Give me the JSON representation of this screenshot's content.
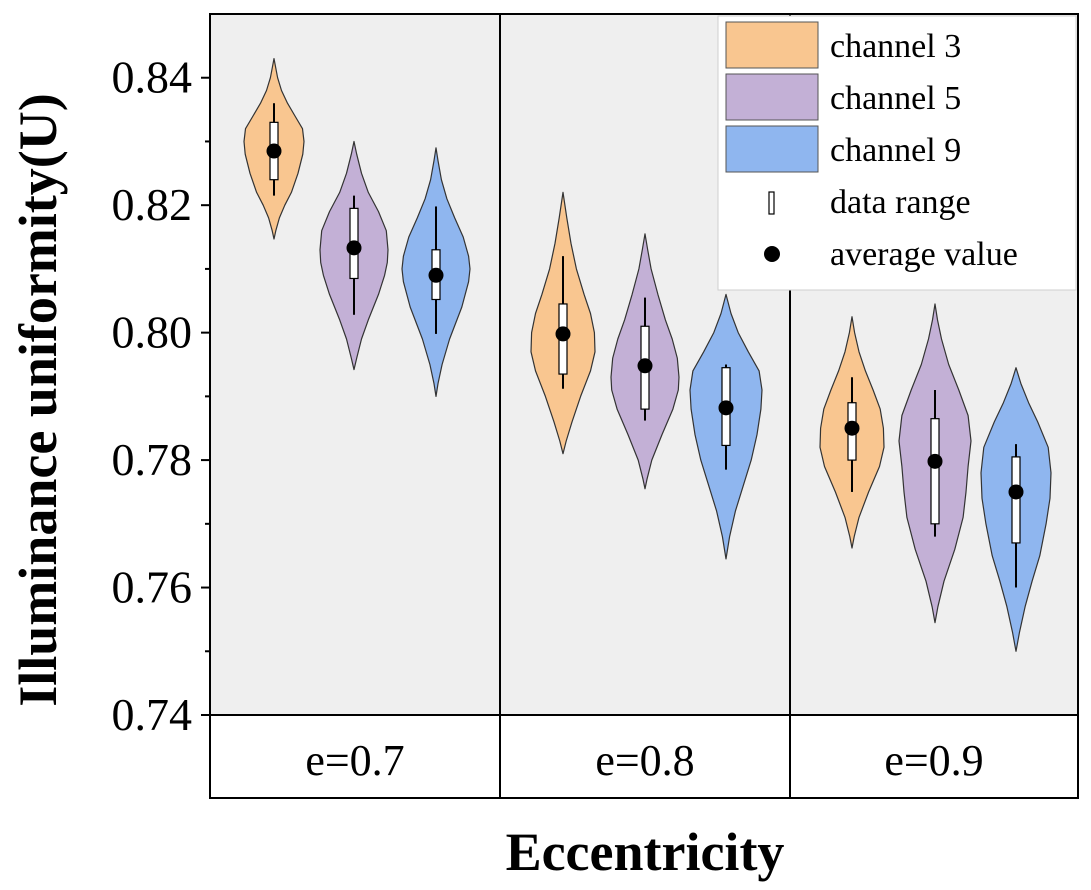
{
  "chart_data": {
    "type": "violin",
    "title": "",
    "xlabel": "Eccentricity",
    "ylabel": "Illuminance uniformity(U)",
    "ylim": [
      0.74,
      0.85
    ],
    "yticks": [
      "0.74",
      "0.76",
      "0.78",
      "0.80",
      "0.82",
      "0.84"
    ],
    "categories": [
      "e=0.7",
      "e=0.8",
      "e=0.9"
    ],
    "legend_position": "top-right",
    "legend": {
      "series": [
        {
          "label": "channel 3",
          "color": "#f9c690"
        },
        {
          "label": "channel 5",
          "color": "#c3b0d6"
        },
        {
          "label": "channel 9",
          "color": "#8fb6ef"
        }
      ],
      "range_label": "data range",
      "mean_label": "average value"
    },
    "groups": [
      {
        "category": "e=0.7",
        "violins": [
          {
            "series": "channel 3",
            "min": 0.8147,
            "max": 0.843,
            "q1": 0.824,
            "q3": 0.833,
            "whisker_low": 0.8215,
            "whisker_high": 0.836,
            "mean": 0.8285,
            "profile": [
              [
                0.8147,
                0.0
              ],
              [
                0.816,
                0.06
              ],
              [
                0.818,
                0.18
              ],
              [
                0.82,
                0.36
              ],
              [
                0.822,
                0.58
              ],
              [
                0.825,
                0.8
              ],
              [
                0.828,
                0.96
              ],
              [
                0.83,
                1.0
              ],
              [
                0.832,
                0.95
              ],
              [
                0.834,
                0.7
              ],
              [
                0.836,
                0.45
              ],
              [
                0.838,
                0.25
              ],
              [
                0.84,
                0.12
              ],
              [
                0.843,
                0.0
              ]
            ]
          },
          {
            "series": "channel 5",
            "min": 0.7942,
            "max": 0.83,
            "q1": 0.8085,
            "q3": 0.8195,
            "whisker_low": 0.8028,
            "whisker_high": 0.8215,
            "mean": 0.8133,
            "profile": [
              [
                0.7942,
                0.0
              ],
              [
                0.796,
                0.08
              ],
              [
                0.799,
                0.22
              ],
              [
                0.802,
                0.42
              ],
              [
                0.806,
                0.72
              ],
              [
                0.809,
                0.9
              ],
              [
                0.811,
                0.98
              ],
              [
                0.813,
                1.0
              ],
              [
                0.816,
                0.95
              ],
              [
                0.819,
                0.72
              ],
              [
                0.822,
                0.42
              ],
              [
                0.825,
                0.22
              ],
              [
                0.828,
                0.08
              ],
              [
                0.83,
                0.0
              ]
            ]
          },
          {
            "series": "channel 9",
            "min": 0.79,
            "max": 0.829,
            "q1": 0.8052,
            "q3": 0.813,
            "whisker_low": 0.7998,
            "whisker_high": 0.8198,
            "mean": 0.809,
            "profile": [
              [
                0.79,
                0.0
              ],
              [
                0.792,
                0.06
              ],
              [
                0.795,
                0.18
              ],
              [
                0.799,
                0.4
              ],
              [
                0.804,
                0.76
              ],
              [
                0.808,
                0.96
              ],
              [
                0.81,
                1.0
              ],
              [
                0.812,
                0.96
              ],
              [
                0.815,
                0.8
              ],
              [
                0.818,
                0.55
              ],
              [
                0.821,
                0.32
              ],
              [
                0.824,
                0.16
              ],
              [
                0.827,
                0.06
              ],
              [
                0.829,
                0.0
              ]
            ]
          }
        ]
      },
      {
        "category": "e=0.8",
        "violins": [
          {
            "series": "channel 3",
            "min": 0.781,
            "max": 0.822,
            "q1": 0.7935,
            "q3": 0.8045,
            "whisker_low": 0.7912,
            "whisker_high": 0.812,
            "mean": 0.7998,
            "profile": [
              [
                0.781,
                0.0
              ],
              [
                0.783,
                0.1
              ],
              [
                0.786,
                0.28
              ],
              [
                0.79,
                0.55
              ],
              [
                0.794,
                0.86
              ],
              [
                0.797,
                1.0
              ],
              [
                0.8,
                0.98
              ],
              [
                0.803,
                0.86
              ],
              [
                0.806,
                0.66
              ],
              [
                0.81,
                0.42
              ],
              [
                0.814,
                0.25
              ],
              [
                0.818,
                0.12
              ],
              [
                0.822,
                0.0
              ]
            ]
          },
          {
            "series": "channel 5",
            "min": 0.7755,
            "max": 0.8155,
            "q1": 0.788,
            "q3": 0.801,
            "whisker_low": 0.7862,
            "whisker_high": 0.8055,
            "mean": 0.7948,
            "profile": [
              [
                0.7755,
                0.0
              ],
              [
                0.777,
                0.06
              ],
              [
                0.78,
                0.2
              ],
              [
                0.784,
                0.5
              ],
              [
                0.788,
                0.82
              ],
              [
                0.791,
                0.98
              ],
              [
                0.793,
                1.0
              ],
              [
                0.796,
                0.95
              ],
              [
                0.799,
                0.8
              ],
              [
                0.802,
                0.6
              ],
              [
                0.806,
                0.38
              ],
              [
                0.81,
                0.18
              ],
              [
                0.813,
                0.08
              ],
              [
                0.8155,
                0.0
              ]
            ]
          },
          {
            "series": "channel 9",
            "min": 0.7645,
            "max": 0.806,
            "q1": 0.7823,
            "q3": 0.7945,
            "whisker_low": 0.7785,
            "whisker_high": 0.795,
            "mean": 0.7882,
            "profile": [
              [
                0.7645,
                0.0
              ],
              [
                0.768,
                0.1
              ],
              [
                0.772,
                0.26
              ],
              [
                0.776,
                0.48
              ],
              [
                0.78,
                0.7
              ],
              [
                0.784,
                0.86
              ],
              [
                0.788,
                0.97
              ],
              [
                0.791,
                1.0
              ],
              [
                0.794,
                0.92
              ],
              [
                0.797,
                0.62
              ],
              [
                0.8,
                0.34
              ],
              [
                0.803,
                0.14
              ],
              [
                0.806,
                0.0
              ]
            ]
          }
        ]
      },
      {
        "category": "e=0.9",
        "violins": [
          {
            "series": "channel 3",
            "min": 0.7662,
            "max": 0.8025,
            "q1": 0.78,
            "q3": 0.789,
            "whisker_low": 0.775,
            "whisker_high": 0.793,
            "mean": 0.785,
            "profile": [
              [
                0.7662,
                0.0
              ],
              [
                0.768,
                0.07
              ],
              [
                0.771,
                0.22
              ],
              [
                0.775,
                0.52
              ],
              [
                0.779,
                0.86
              ],
              [
                0.782,
                1.0
              ],
              [
                0.785,
                0.98
              ],
              [
                0.788,
                0.88
              ],
              [
                0.791,
                0.66
              ],
              [
                0.794,
                0.42
              ],
              [
                0.797,
                0.22
              ],
              [
                0.8,
                0.08
              ],
              [
                0.8025,
                0.0
              ]
            ]
          },
          {
            "series": "channel 5",
            "min": 0.7545,
            "max": 0.8045,
            "q1": 0.77,
            "q3": 0.7865,
            "whisker_low": 0.768,
            "whisker_high": 0.791,
            "mean": 0.7798,
            "profile": [
              [
                0.7545,
                0.0
              ],
              [
                0.757,
                0.08
              ],
              [
                0.761,
                0.25
              ],
              [
                0.766,
                0.55
              ],
              [
                0.771,
                0.78
              ],
              [
                0.775,
                0.86
              ],
              [
                0.779,
                0.92
              ],
              [
                0.783,
                1.0
              ],
              [
                0.787,
                0.92
              ],
              [
                0.791,
                0.66
              ],
              [
                0.795,
                0.38
              ],
              [
                0.799,
                0.18
              ],
              [
                0.802,
                0.07
              ],
              [
                0.8045,
                0.0
              ]
            ]
          },
          {
            "series": "channel 9",
            "min": 0.75,
            "max": 0.7945,
            "q1": 0.767,
            "q3": 0.7805,
            "whisker_low": 0.76,
            "whisker_high": 0.7825,
            "mean": 0.775,
            "profile": [
              [
                0.75,
                0.0
              ],
              [
                0.753,
                0.1
              ],
              [
                0.757,
                0.26
              ],
              [
                0.761,
                0.46
              ],
              [
                0.765,
                0.68
              ],
              [
                0.77,
                0.86
              ],
              [
                0.774,
                0.97
              ],
              [
                0.778,
                1.0
              ],
              [
                0.782,
                0.92
              ],
              [
                0.786,
                0.62
              ],
              [
                0.789,
                0.36
              ],
              [
                0.792,
                0.14
              ],
              [
                0.7945,
                0.0
              ]
            ]
          }
        ]
      }
    ]
  }
}
